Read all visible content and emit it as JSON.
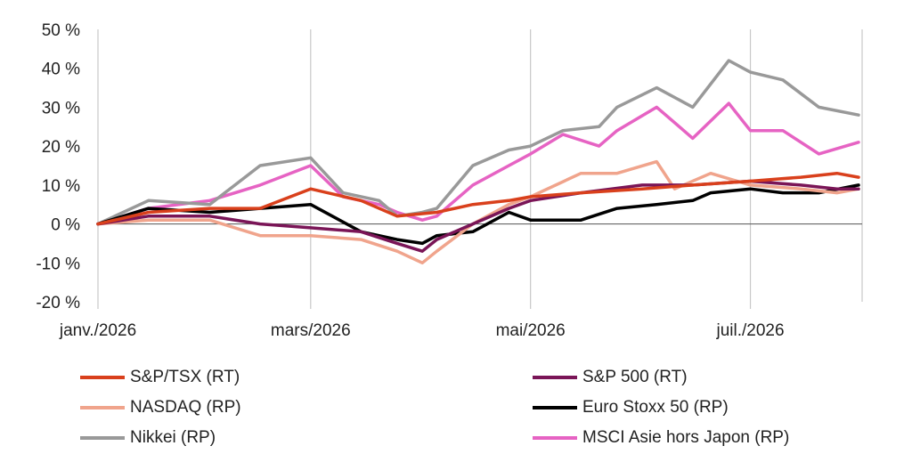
{
  "chart_data": {
    "type": "line",
    "title": "",
    "xlabel": "",
    "ylabel": "",
    "ylim": [
      -20,
      50
    ],
    "y_ticks": [
      -20,
      -10,
      0,
      10,
      20,
      30,
      40,
      50
    ],
    "y_tick_labels": [
      "-20 %",
      "-10 %",
      "0 %",
      "10 %",
      "20 %",
      "30 %",
      "40 %",
      "50 %"
    ],
    "x_range": [
      "2026-01-01",
      "2026-07-31"
    ],
    "x_ticks": [
      "2026-01-01",
      "2026-03-01",
      "2026-05-01",
      "2026-07-01"
    ],
    "x_tick_labels": [
      "janv./2026",
      "mars/2026",
      "mai/2026",
      "juil./2026"
    ],
    "grid": {
      "vertical": true,
      "horizontal": false,
      "zero_line": true
    },
    "legend_placement": "bottom",
    "series": [
      {
        "name": "S&P/TSX (RT)",
        "color": "#d9401c",
        "points": [
          [
            "2026-01-01",
            0
          ],
          [
            "2026-01-15",
            3
          ],
          [
            "2026-02-01",
            4
          ],
          [
            "2026-02-15",
            4
          ],
          [
            "2026-03-01",
            9
          ],
          [
            "2026-03-15",
            6
          ],
          [
            "2026-03-25",
            2
          ],
          [
            "2026-04-05",
            3
          ],
          [
            "2026-04-15",
            5
          ],
          [
            "2026-04-25",
            6
          ],
          [
            "2026-05-01",
            7
          ],
          [
            "2026-05-15",
            8
          ],
          [
            "2026-06-01",
            9
          ],
          [
            "2026-06-15",
            10
          ],
          [
            "2026-07-01",
            11
          ],
          [
            "2026-07-15",
            12
          ],
          [
            "2026-07-25",
            13
          ],
          [
            "2026-07-31",
            12
          ]
        ]
      },
      {
        "name": "S&P 500 (RT)",
        "color": "#7a1557",
        "points": [
          [
            "2026-01-01",
            0
          ],
          [
            "2026-01-15",
            2
          ],
          [
            "2026-02-01",
            2
          ],
          [
            "2026-02-15",
            0
          ],
          [
            "2026-03-01",
            -1
          ],
          [
            "2026-03-15",
            -2
          ],
          [
            "2026-03-25",
            -5
          ],
          [
            "2026-04-01",
            -7
          ],
          [
            "2026-04-05",
            -4
          ],
          [
            "2026-04-15",
            0
          ],
          [
            "2026-04-25",
            4
          ],
          [
            "2026-05-01",
            6
          ],
          [
            "2026-05-15",
            8
          ],
          [
            "2026-06-01",
            10
          ],
          [
            "2026-06-15",
            10
          ],
          [
            "2026-07-01",
            11
          ],
          [
            "2026-07-15",
            10
          ],
          [
            "2026-07-25",
            9
          ],
          [
            "2026-07-31",
            9
          ]
        ]
      },
      {
        "name": "NASDAQ (RP)",
        "color": "#f0a48c",
        "points": [
          [
            "2026-01-01",
            0
          ],
          [
            "2026-01-15",
            1
          ],
          [
            "2026-02-01",
            1
          ],
          [
            "2026-02-15",
            -3
          ],
          [
            "2026-03-01",
            -3
          ],
          [
            "2026-03-15",
            -4
          ],
          [
            "2026-03-25",
            -7
          ],
          [
            "2026-04-01",
            -10
          ],
          [
            "2026-04-05",
            -7
          ],
          [
            "2026-04-15",
            0
          ],
          [
            "2026-04-25",
            5
          ],
          [
            "2026-05-01",
            7
          ],
          [
            "2026-05-15",
            13
          ],
          [
            "2026-05-25",
            13
          ],
          [
            "2026-06-05",
            16
          ],
          [
            "2026-06-10",
            9
          ],
          [
            "2026-06-20",
            13
          ],
          [
            "2026-07-01",
            10
          ],
          [
            "2026-07-15",
            9
          ],
          [
            "2026-07-25",
            8
          ],
          [
            "2026-07-31",
            9
          ]
        ]
      },
      {
        "name": "Euro Stoxx 50 (RP)",
        "color": "#000000",
        "points": [
          [
            "2026-01-01",
            0
          ],
          [
            "2026-01-15",
            4
          ],
          [
            "2026-02-01",
            3
          ],
          [
            "2026-02-15",
            4
          ],
          [
            "2026-03-01",
            5
          ],
          [
            "2026-03-15",
            -2
          ],
          [
            "2026-03-25",
            -4
          ],
          [
            "2026-04-01",
            -5
          ],
          [
            "2026-04-05",
            -3
          ],
          [
            "2026-04-15",
            -2
          ],
          [
            "2026-04-25",
            3
          ],
          [
            "2026-05-01",
            1
          ],
          [
            "2026-05-15",
            1
          ],
          [
            "2026-05-25",
            4
          ],
          [
            "2026-06-05",
            5
          ],
          [
            "2026-06-15",
            6
          ],
          [
            "2026-06-20",
            8
          ],
          [
            "2026-07-01",
            9
          ],
          [
            "2026-07-10",
            8
          ],
          [
            "2026-07-20",
            8
          ],
          [
            "2026-07-31",
            10
          ]
        ]
      },
      {
        "name": "Nikkei (RP)",
        "color": "#999999",
        "points": [
          [
            "2026-01-01",
            0
          ],
          [
            "2026-01-15",
            6
          ],
          [
            "2026-02-01",
            5
          ],
          [
            "2026-02-15",
            15
          ],
          [
            "2026-03-01",
            17
          ],
          [
            "2026-03-10",
            8
          ],
          [
            "2026-03-20",
            6
          ],
          [
            "2026-03-25",
            2
          ],
          [
            "2026-04-01",
            3
          ],
          [
            "2026-04-05",
            4
          ],
          [
            "2026-04-15",
            15
          ],
          [
            "2026-04-25",
            19
          ],
          [
            "2026-05-01",
            20
          ],
          [
            "2026-05-10",
            24
          ],
          [
            "2026-05-20",
            25
          ],
          [
            "2026-05-25",
            30
          ],
          [
            "2026-06-05",
            35
          ],
          [
            "2026-06-15",
            30
          ],
          [
            "2026-06-25",
            42
          ],
          [
            "2026-07-01",
            39
          ],
          [
            "2026-07-10",
            37
          ],
          [
            "2026-07-20",
            30
          ],
          [
            "2026-07-31",
            28
          ]
        ]
      },
      {
        "name": "MSCI Asie hors Japon (RP)",
        "color": "#e663c3",
        "points": [
          [
            "2026-01-01",
            0
          ],
          [
            "2026-01-15",
            4
          ],
          [
            "2026-02-01",
            6
          ],
          [
            "2026-02-15",
            10
          ],
          [
            "2026-03-01",
            15
          ],
          [
            "2026-03-10",
            7
          ],
          [
            "2026-03-20",
            5
          ],
          [
            "2026-03-25",
            3
          ],
          [
            "2026-04-01",
            1
          ],
          [
            "2026-04-05",
            2
          ],
          [
            "2026-04-15",
            10
          ],
          [
            "2026-04-25",
            15
          ],
          [
            "2026-05-01",
            18
          ],
          [
            "2026-05-10",
            23
          ],
          [
            "2026-05-20",
            20
          ],
          [
            "2026-05-25",
            24
          ],
          [
            "2026-06-05",
            30
          ],
          [
            "2026-06-15",
            22
          ],
          [
            "2026-06-25",
            31
          ],
          [
            "2026-07-01",
            24
          ],
          [
            "2026-07-10",
            24
          ],
          [
            "2026-07-20",
            18
          ],
          [
            "2026-07-31",
            21
          ]
        ]
      }
    ]
  }
}
